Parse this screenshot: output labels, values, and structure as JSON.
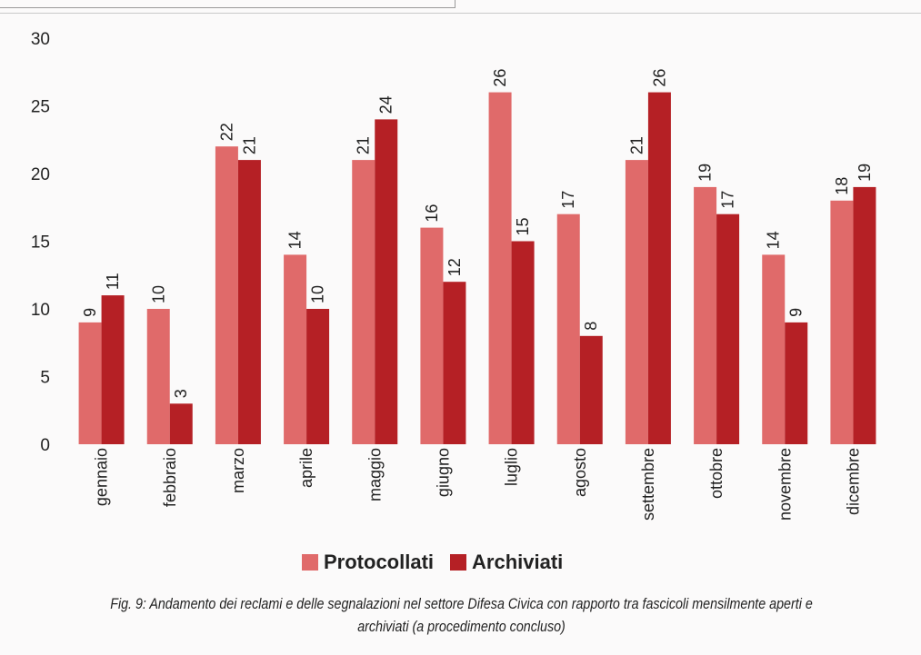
{
  "chart_data": {
    "type": "bar",
    "categories": [
      "gennaio",
      "febbraio",
      "marzo",
      "aprile",
      "maggio",
      "giugno",
      "luglio",
      "agosto",
      "settembre",
      "ottobre",
      "novembre",
      "dicembre"
    ],
    "series": [
      {
        "name": "Protocollati",
        "values": [
          9,
          10,
          22,
          14,
          21,
          16,
          26,
          17,
          21,
          19,
          14,
          18
        ],
        "color": "#e06a6a"
      },
      {
        "name": "Archiviati",
        "values": [
          11,
          3,
          21,
          10,
          24,
          12,
          15,
          8,
          26,
          17,
          9,
          19
        ],
        "color": "#b52025"
      }
    ],
    "ylim": [
      0,
      30
    ],
    "yticks": [
      "0",
      "5",
      "10",
      "15",
      "20",
      "25",
      "30"
    ],
    "grid": false,
    "legend_position": "bottom",
    "caption": "Fig. 9: Andamento dei reclami e delle segnalazioni nel settore Difesa Civica con rapporto tra fascicoli mensilmente aperti e archiviati (a procedimento concluso)"
  }
}
